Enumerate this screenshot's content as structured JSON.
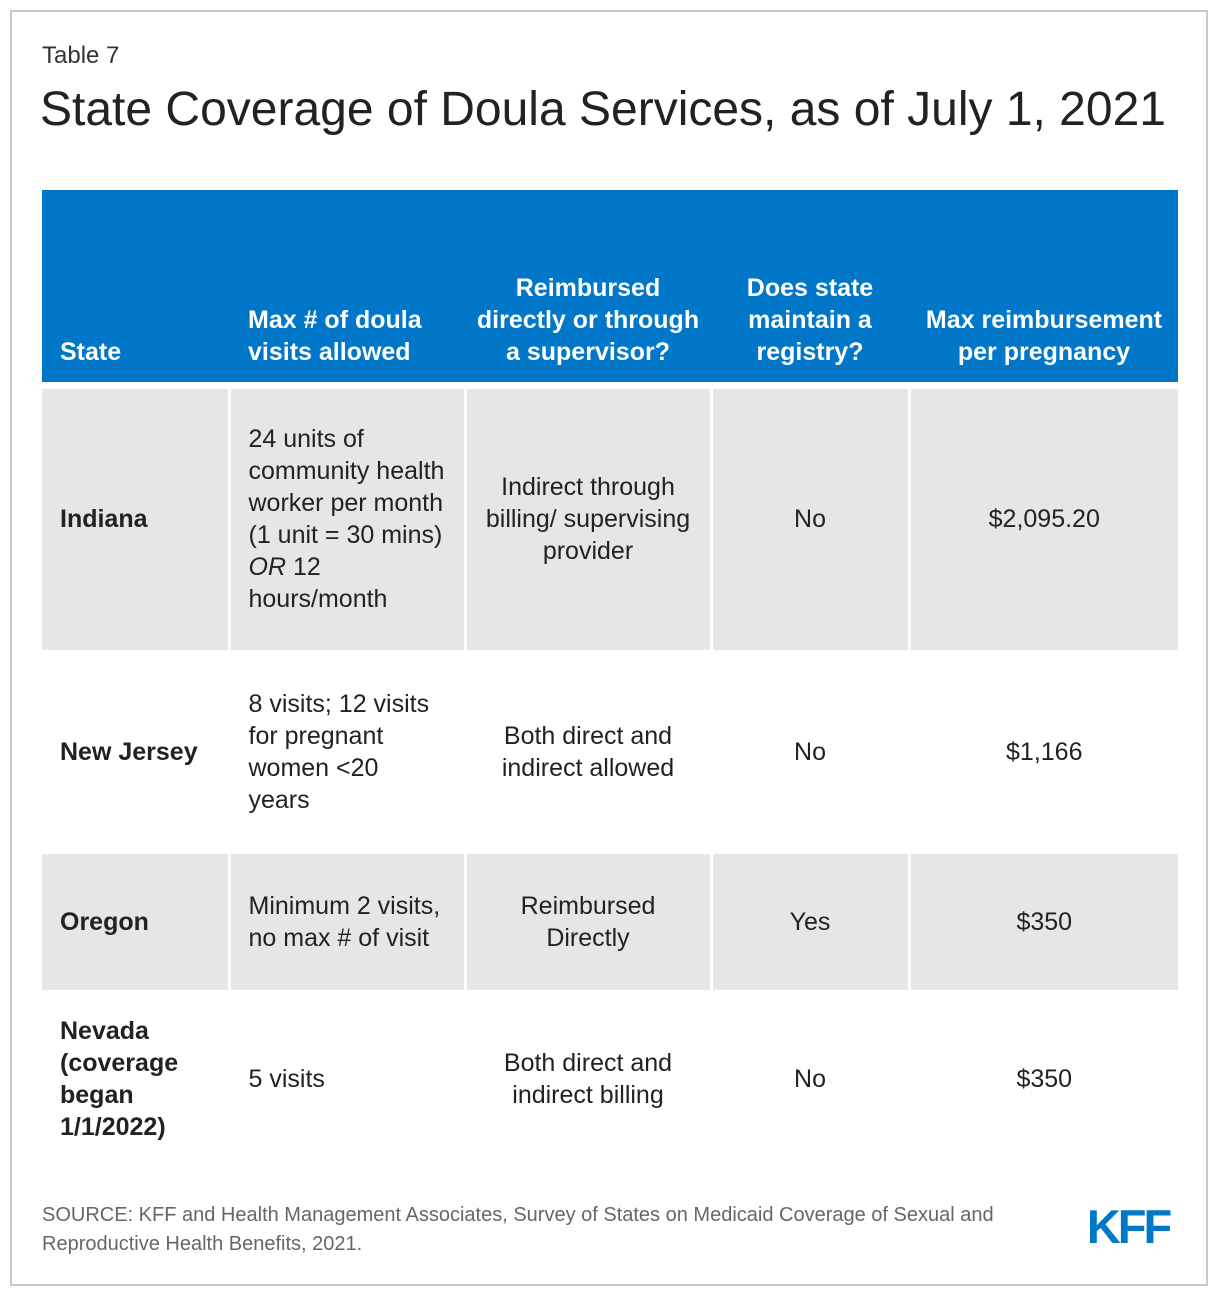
{
  "header": {
    "label": "Table 7",
    "title": "State Coverage of Doula Services, as of July 1, 2021"
  },
  "table": {
    "columns": [
      "State",
      "Max # of doula visits allowed",
      "Reimbursed directly or through a supervisor?",
      "Does state maintain a registry?",
      "Max reimbursement per pregnancy"
    ],
    "rows": [
      {
        "state": "Indiana",
        "visits_prefix": "24 units of community health worker per month (1 unit = 30 mins) ",
        "visits_em": "OR",
        "visits_suffix": " 12 hours/month",
        "reimbursed": "Indirect through billing/ supervising provider",
        "registry": "No",
        "max": "$2,095.20"
      },
      {
        "state": "New Jersey",
        "visits": "8 visits; 12 visits for pregnant women <20 years",
        "reimbursed": "Both direct and indirect allowed",
        "registry": "No",
        "max": "$1,166"
      },
      {
        "state": "Oregon",
        "visits": "Minimum 2 visits, no max # of visit",
        "reimbursed": "Reimbursed Directly",
        "registry": "Yes",
        "max": "$350"
      },
      {
        "state": "Nevada (coverage began 1/1/2022)",
        "visits": "5 visits",
        "reimbursed": "Both direct and indirect billing",
        "registry": "No",
        "max": "$350"
      }
    ]
  },
  "footer": {
    "source": "SOURCE: KFF and Health Management Associates, Survey of States on Medicaid Coverage of Sexual and Reproductive Health Benefits, 2021.",
    "logo_text": "KFF"
  },
  "colors": {
    "header_bg": "#0077c8",
    "shaded_row": "#e6e6e6",
    "logo": "#0077c8"
  }
}
